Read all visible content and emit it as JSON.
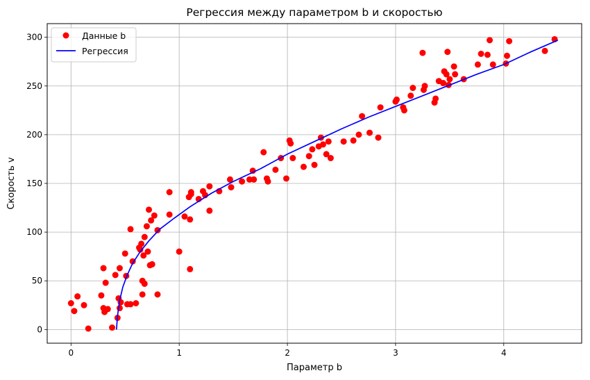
{
  "chart_data": {
    "type": "scatter",
    "title": "Регрессия между параметром b и скоростью",
    "xlabel": "Параметр b",
    "ylabel": "Скорость v",
    "xlim": [
      -0.22,
      4.72
    ],
    "ylim": [
      -14,
      314
    ],
    "xticks": [
      0,
      1,
      2,
      3,
      4
    ],
    "yticks": [
      0,
      50,
      100,
      150,
      200,
      250,
      300
    ],
    "grid": true,
    "legend_position": "top-left",
    "series": [
      {
        "name": "Данные b",
        "kind": "scatter",
        "color": "#ff0000",
        "x": [
          0.0,
          0.03,
          0.06,
          0.12,
          0.16,
          0.28,
          0.3,
          0.3,
          0.31,
          0.32,
          0.34,
          0.38,
          0.41,
          0.43,
          0.44,
          0.45,
          0.45,
          0.46,
          0.5,
          0.51,
          0.52,
          0.55,
          0.55,
          0.57,
          0.6,
          0.63,
          0.64,
          0.65,
          0.66,
          0.66,
          0.67,
          0.68,
          0.68,
          0.7,
          0.71,
          0.72,
          0.73,
          0.74,
          0.75,
          0.77,
          0.8,
          0.8,
          0.91,
          0.91,
          1.0,
          1.05,
          1.09,
          1.1,
          1.1,
          1.11,
          1.11,
          1.18,
          1.22,
          1.24,
          1.28,
          1.28,
          1.37,
          1.47,
          1.48,
          1.58,
          1.65,
          1.68,
          1.69,
          1.78,
          1.81,
          1.82,
          1.89,
          1.94,
          1.99,
          2.02,
          2.03,
          2.05,
          2.15,
          2.2,
          2.23,
          2.25,
          2.29,
          2.31,
          2.33,
          2.36,
          2.38,
          2.4,
          2.52,
          2.61,
          2.66,
          2.69,
          2.76,
          2.84,
          2.86,
          3.0,
          3.01,
          3.07,
          3.08,
          3.14,
          3.16,
          3.25,
          3.26,
          3.27,
          3.36,
          3.37,
          3.4,
          3.44,
          3.45,
          3.47,
          3.48,
          3.49,
          3.5,
          3.54,
          3.55,
          3.63,
          3.76,
          3.79,
          3.85,
          3.87,
          3.9,
          4.02,
          4.03,
          4.05,
          4.38,
          4.47
        ],
        "y": [
          27,
          19,
          34,
          25,
          1,
          35,
          22,
          63,
          18,
          48,
          21,
          2,
          56,
          12,
          32,
          22,
          63,
          28,
          78,
          55,
          26,
          103,
          26,
          70,
          27,
          84,
          82,
          88,
          50,
          36,
          76,
          95,
          47,
          106,
          80,
          123,
          66,
          112,
          67,
          117,
          102,
          36,
          141,
          118,
          80,
          116,
          136,
          113,
          62,
          139,
          141,
          134,
          142,
          138,
          147,
          122,
          142,
          154,
          146,
          152,
          154,
          163,
          154,
          182,
          155,
          152,
          164,
          176,
          155,
          194,
          191,
          176,
          167,
          178,
          185,
          169,
          188,
          197,
          190,
          180,
          193,
          176,
          193,
          194,
          200,
          219,
          202,
          197,
          228,
          234,
          236,
          228,
          225,
          240,
          248,
          284,
          246,
          250,
          233,
          237,
          255,
          253,
          265,
          262,
          285,
          251,
          257,
          270,
          262,
          257,
          272,
          283,
          282,
          297,
          272,
          273,
          281,
          296,
          286,
          298
        ]
      },
      {
        "name": "Регрессия",
        "kind": "line",
        "color": "#0000ff",
        "x": [
          0.42,
          0.43,
          0.45,
          0.48,
          0.52,
          0.57,
          0.64,
          0.72,
          0.82,
          0.95,
          1.1,
          1.3,
          1.5,
          1.75,
          2.0,
          2.25,
          2.5,
          2.75,
          3.0,
          3.25,
          3.5,
          3.75,
          4.0,
          4.25,
          4.5
        ],
        "y": [
          0,
          14,
          30,
          44,
          56,
          68,
          80,
          91,
          103,
          114,
          126,
          140,
          152,
          165,
          180,
          193,
          206,
          218,
          229,
          240,
          251,
          262,
          272,
          285,
          297
        ]
      }
    ]
  }
}
